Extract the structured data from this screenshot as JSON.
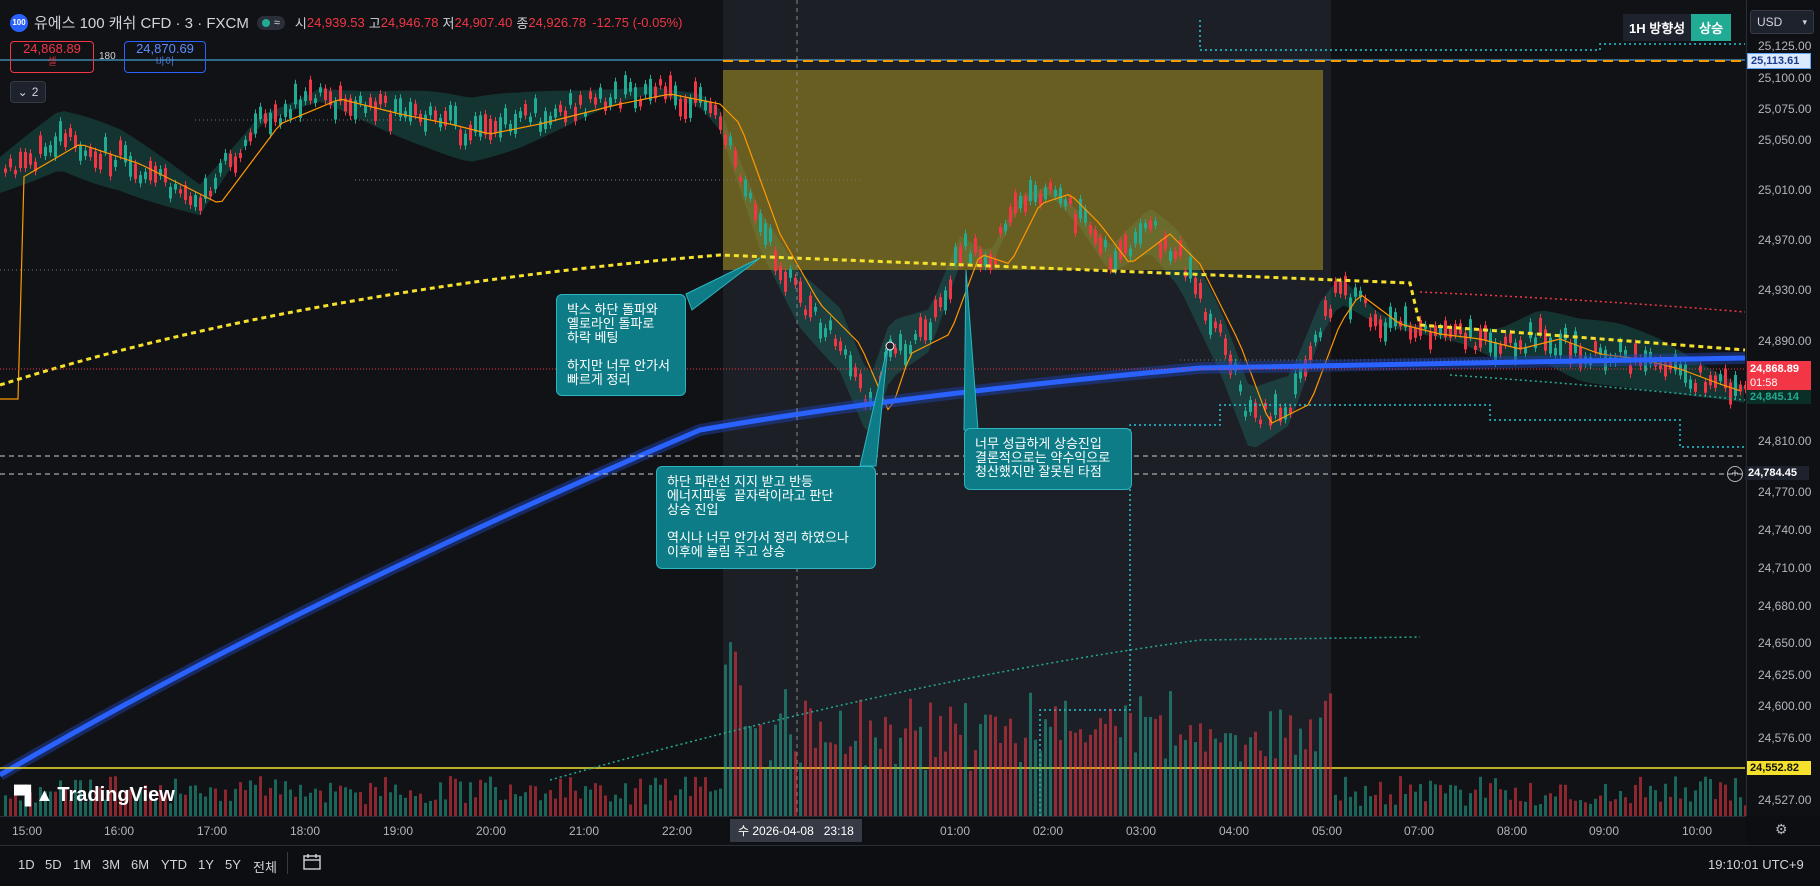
{
  "legend": {
    "logo_text": "100",
    "title": "유에스 100 캐쉬 CFD · 3 · FXCM",
    "badge": "≈",
    "open_label": "시",
    "open": "24,939.53",
    "high_label": "고",
    "high": "24,946.78",
    "low_label": "저",
    "low": "24,907.40",
    "close_label": "종",
    "close": "24,926.78",
    "change": "-12.75 (-0.05%)"
  },
  "trade": {
    "sell_price": "24,868.89",
    "sell_label": "셀",
    "spread": "180",
    "buy_price": "24,870.69",
    "buy_label": "바이"
  },
  "indicators_toggle": "2",
  "trend_widget": {
    "label": "1H 방향성",
    "value": "상승"
  },
  "currency": "USD",
  "price_scale": {
    "ticks": [
      "25,125.00",
      "25,100.00",
      "25,075.00",
      "25,050.00",
      "25,010.00",
      "24,970.00",
      "24,930.00",
      "24,890.00",
      "24,810.00",
      "24,770.00",
      "24,740.00",
      "24,710.00",
      "24,680.00",
      "24,650.00",
      "24,625.00",
      "24,600.00",
      "24,576.00",
      "24,527.00"
    ],
    "tags": {
      "upper_line": "25,113.61",
      "current_price": "24,868.89",
      "countdown": "01:58",
      "lower_band": "24,845.14",
      "crosshair": "24,784.45",
      "support_line": "24,552.82"
    }
  },
  "time_axis": {
    "ticks": [
      "15:00",
      "16:00",
      "17:00",
      "18:00",
      "19:00",
      "20:00",
      "21:00",
      "22:00",
      "01:00",
      "02:00",
      "03:00",
      "04:00",
      "05:00",
      "07:00",
      "08:00",
      "09:00",
      "10:00"
    ],
    "crosshair_label": "수 2026-04-08   23:18"
  },
  "annotations": [
    {
      "text": "박스 하단 돌파와\n옐로라인 돌파로\n하락 베팅\n\n하지만 너무 안가서\n빠르게 정리"
    },
    {
      "text": "하단 파란선 지지 받고 반등\n에너지파동  끝자락이라고 판단\n상승 진입\n\n역시나 너무 안가서 정리 하였으나\n이후에 눌림 주고 상승"
    },
    {
      "text": "너무 성급하게 상승진입\n결론적으로는 약수익으로\n청산했지만 잘못된 타점"
    }
  ],
  "watermark": "TradingView",
  "bottom_toolbar": {
    "timeframes": [
      "1D",
      "5D",
      "1M",
      "3M",
      "6M",
      "YTD",
      "1Y",
      "5Y",
      "전체"
    ],
    "clock": "19:10:01 UTC+9"
  },
  "colors": {
    "up": "#22ab94",
    "down": "#f23645",
    "ma_yellow": "#f5e12b",
    "ema_blue": "#2962ff",
    "box": "#a8921e",
    "callout": "#0e7c86",
    "orange_line": "#ff9800"
  }
}
